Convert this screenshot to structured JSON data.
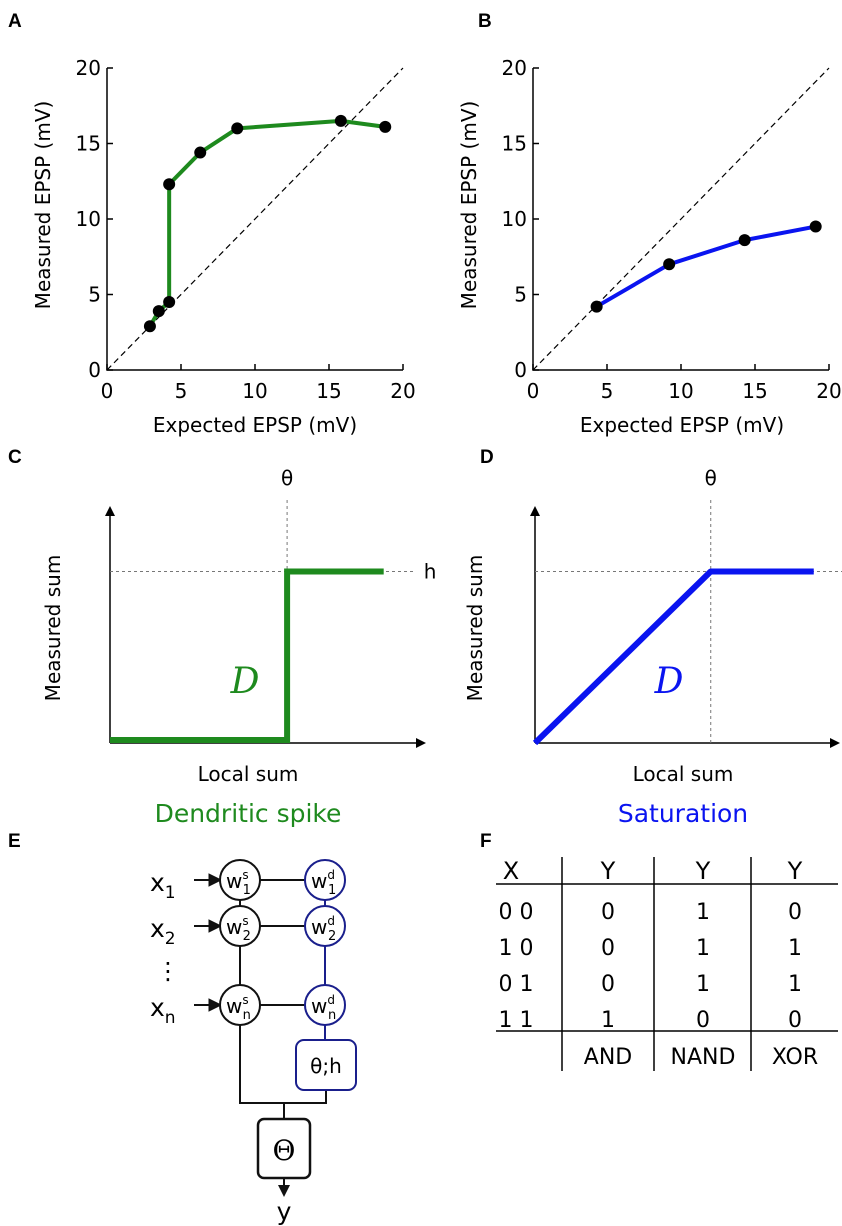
{
  "panels": {
    "A": {
      "label": "A"
    },
    "B": {
      "label": "B"
    },
    "C": {
      "label": "C"
    },
    "D": {
      "label": "D"
    },
    "E": {
      "label": "E"
    },
    "F": {
      "label": "F"
    }
  },
  "chart_data": [
    {
      "type": "line",
      "panel": "A",
      "xlabel": "Expected EPSP (mV)",
      "ylabel": "Measured EPSP (mV)",
      "xlim": [
        0,
        20
      ],
      "ylim": [
        0,
        20
      ],
      "xticks": [
        "0",
        "5",
        "10",
        "15",
        "20"
      ],
      "yticks": [
        "0",
        "5",
        "10",
        "15",
        "20"
      ],
      "color": "#1e8a1e",
      "reference_line": "identity (dashed)",
      "x": [
        2.9,
        3.5,
        4.2,
        4.2,
        6.3,
        8.8,
        15.8,
        18.8
      ],
      "y": [
        2.9,
        3.9,
        4.5,
        12.3,
        14.4,
        16.0,
        16.5,
        16.1
      ]
    },
    {
      "type": "line",
      "panel": "B",
      "xlabel": "Expected EPSP (mV)",
      "ylabel": "Measured EPSP (mV)",
      "xlim": [
        0,
        20
      ],
      "ylim": [
        0,
        20
      ],
      "xticks": [
        "0",
        "5",
        "10",
        "15",
        "20"
      ],
      "yticks": [
        "0",
        "5",
        "10",
        "15",
        "20"
      ],
      "color": "#0a14f0",
      "reference_line": "identity (dashed)",
      "x": [
        4.3,
        9.2,
        14.3,
        19.1
      ],
      "y": [
        4.2,
        7.0,
        8.6,
        9.5
      ]
    },
    {
      "type": "line",
      "panel": "C",
      "xlabel": "Local sum",
      "ylabel": "Measured sum",
      "threshold_label": "θ",
      "height_label": "h",
      "curve_label": "D",
      "caption": "Dendritic spike",
      "color": "#1e8a1e",
      "shape": "step",
      "threshold": 0.55,
      "height": 0.73,
      "x_max": 0.85
    },
    {
      "type": "line",
      "panel": "D",
      "xlabel": "Local sum",
      "ylabel": "Measured sum",
      "threshold_label": "θ",
      "height_label": "h",
      "curve_label": "D",
      "caption": "Saturation",
      "color": "#0a14f0",
      "shape": "saturating-linear",
      "threshold": 0.58,
      "height": 0.73,
      "x_max": 0.92
    }
  ],
  "diagram": {
    "inputs": [
      {
        "sym": "x",
        "sub": "1"
      },
      {
        "sym": "x",
        "sub": "2"
      },
      {
        "sym": "x",
        "sub": "n"
      }
    ],
    "ellipsis": "⋮",
    "soma_weights": [
      {
        "sym": "w",
        "sup": "s",
        "sub": "1"
      },
      {
        "sym": "w",
        "sup": "s",
        "sub": "2"
      },
      {
        "sym": "w",
        "sup": "s",
        "sub": "n"
      }
    ],
    "dendrite_weights": [
      {
        "sym": "w",
        "sup": "d",
        "sub": "1"
      },
      {
        "sym": "w",
        "sup": "d",
        "sub": "2"
      },
      {
        "sym": "w",
        "sup": "d",
        "sub": "n"
      }
    ],
    "dendrite_box": "θ;h",
    "output_box": "Θ",
    "output": "y",
    "black": "#111111",
    "navy": "#1a1f8c"
  },
  "truth_table": {
    "headers": [
      "X",
      "Y",
      "Y",
      "Y"
    ],
    "rows": [
      [
        "0 0",
        "0",
        "1",
        "0"
      ],
      [
        "1 0",
        "0",
        "1",
        "1"
      ],
      [
        "0 1",
        "0",
        "1",
        "1"
      ],
      [
        "1 1",
        "1",
        "0",
        "0"
      ]
    ],
    "footers": [
      "",
      "AND",
      "NAND",
      "XOR"
    ]
  }
}
